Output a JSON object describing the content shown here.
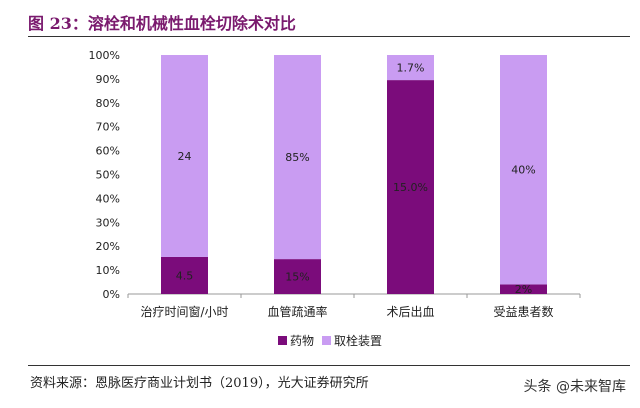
{
  "title": "图 23：溶栓和机械性血栓切除术对比",
  "source": "资料来源：恩脉医疗商业计划书（2019），光大证券研究所",
  "watermark": "头条 @未来智库",
  "chart_data": {
    "type": "bar",
    "stacked": true,
    "categories": [
      "治疗时间窗/小时",
      "血管疏通率",
      "术后出血",
      "受益患者数"
    ],
    "series": [
      {
        "name": "药物",
        "color": "#7b0c7b",
        "values": [
          15.5,
          14.6,
          89.5,
          4
        ],
        "labels": [
          "4.5",
          "15%",
          "15.0%",
          "2%"
        ]
      },
      {
        "name": "取栓装置",
        "color": "#c99cf2",
        "values": [
          84.5,
          85.4,
          10.5,
          96
        ],
        "labels": [
          "24",
          "85%",
          "1.7%",
          "40%"
        ]
      }
    ],
    "ylim": [
      0,
      100
    ],
    "yticks": [
      "0%",
      "10%",
      "20%",
      "30%",
      "40%",
      "50%",
      "60%",
      "70%",
      "80%",
      "90%",
      "100%"
    ],
    "legend": "bottom",
    "grid": false
  }
}
